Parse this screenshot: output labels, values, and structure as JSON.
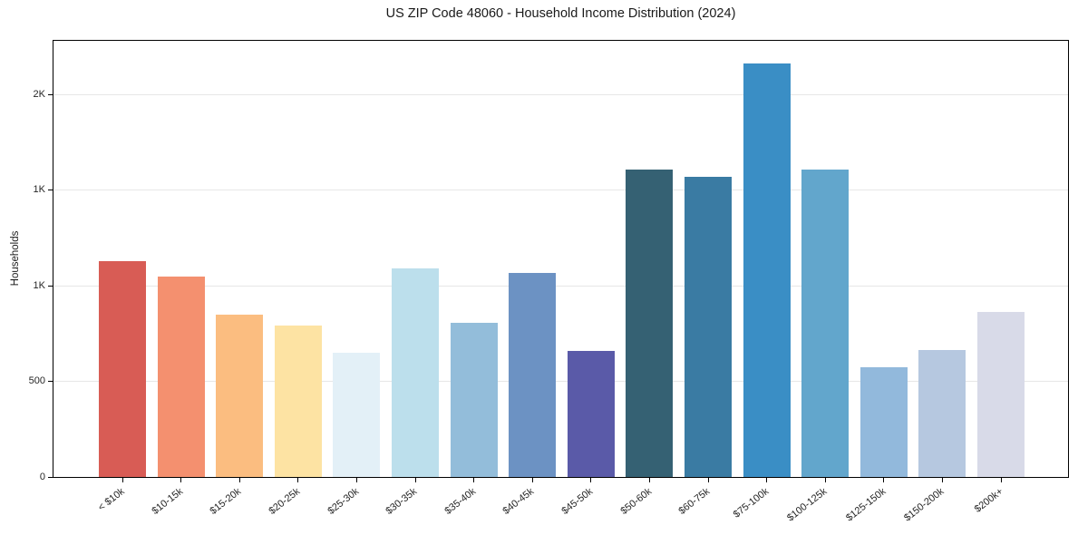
{
  "title": "US ZIP Code 48060 - Household Income Distribution (2024)",
  "chart_data": {
    "type": "bar",
    "title": "US ZIP Code 48060 - Household Income Distribution (2024)",
    "xlabel": "",
    "ylabel": "Households",
    "ylim": [
      0,
      2280
    ],
    "grid": "horizontal",
    "grid_color": "#e7e7e7",
    "background": "#ffffff",
    "legend": "none",
    "xticklabel_rotation_deg": 38,
    "categories": [
      "< $10k",
      "$10-15k",
      "$15-20k",
      "$20-25k",
      "$25-30k",
      "$30-35k",
      "$35-40k",
      "$40-45k",
      "$45-50k",
      "$50-60k",
      "$60-75k",
      "$75-100k",
      "$100-125k",
      "$125-150k",
      "$150-200k",
      "$200k+"
    ],
    "values": [
      1130,
      1050,
      850,
      790,
      650,
      1090,
      805,
      1065,
      660,
      1605,
      1570,
      2160,
      1605,
      575,
      665,
      865
    ],
    "bar_colors": [
      "#d85c55",
      "#f4906f",
      "#fbbd80",
      "#fde3a3",
      "#e3f0f7",
      "#bcdfec",
      "#93bdda",
      "#6c92c3",
      "#5a5aa8",
      "#356173",
      "#3a7ba3",
      "#3a8ec5",
      "#62a6cc",
      "#92b9dc",
      "#b6c8e0",
      "#d8dae8"
    ],
    "yticks": [
      {
        "value": 0,
        "label": "0"
      },
      {
        "value": 500,
        "label": "500"
      },
      {
        "value": 1000,
        "label": "1K"
      },
      {
        "value": 1500,
        "label": "1K"
      },
      {
        "value": 2000,
        "label": "2K"
      }
    ]
  }
}
